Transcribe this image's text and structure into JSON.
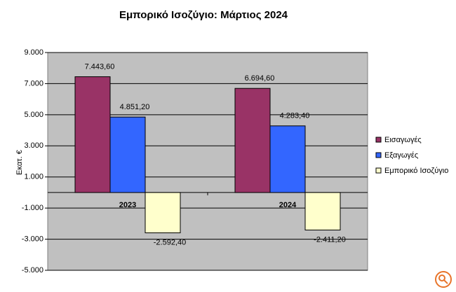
{
  "chart_data": {
    "type": "bar",
    "title": "Εμπορικό Ισοζύγιο: Μάρτιος 2024",
    "y_label": "Εκατ. €",
    "categories": [
      "2023",
      "2024"
    ],
    "series": [
      {
        "name": "Εισαγωγές",
        "color": "#993366",
        "values": [
          7443.6,
          6694.6
        ],
        "value_labels": [
          "7.443,60",
          "6.694,60"
        ]
      },
      {
        "name": "Εξαγωγές",
        "color": "#3366ff",
        "values": [
          4851.2,
          4283.4
        ],
        "value_labels": [
          "4.851,20",
          "4.283,40"
        ]
      },
      {
        "name": "Εμπορικό Ισοζύγιο",
        "color": "#ffffcc",
        "values": [
          -2592.4,
          -2411.2
        ],
        "value_labels": [
          "-2.592,40",
          "-2.411,20"
        ]
      }
    ],
    "ylim": [
      -5000,
      9000
    ],
    "yticks": [
      {
        "value": -5000,
        "label": "-5.000"
      },
      {
        "value": -3000,
        "label": "-3.000"
      },
      {
        "value": -1000,
        "label": "-1.000"
      },
      {
        "value": 1000,
        "label": "1.000"
      },
      {
        "value": 3000,
        "label": "3.000"
      },
      {
        "value": 5000,
        "label": "5.000"
      },
      {
        "value": 7000,
        "label": "7.000"
      },
      {
        "value": 9000,
        "label": "9.000"
      }
    ],
    "grid": true,
    "legend": "right"
  }
}
